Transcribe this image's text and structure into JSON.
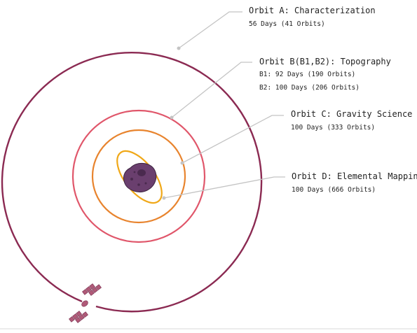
{
  "colors": {
    "orbit_a": "#8b2a52",
    "orbit_b": "#e0566a",
    "orbit_c": "#e8842e",
    "orbit_d": "#f0a818",
    "asteroid": "#6a3f6e",
    "spacecraft": "#b05a78",
    "leader": "#c4c4c4",
    "text": "#222222"
  },
  "orbits": [
    {
      "id": "a",
      "title": "Orbit A: Characterization",
      "details": [
        "56 Days (41 Orbits)"
      ]
    },
    {
      "id": "b",
      "title": "Orbit B(B1,B2): Topography",
      "details": [
        "B1: 92 Days (190 Orbits)",
        "B2: 100 Days (206 Orbits)"
      ]
    },
    {
      "id": "c",
      "title": "Orbit C: Gravity Science",
      "details": [
        "100 Days (333 Orbits)"
      ]
    },
    {
      "id": "d",
      "title": "Orbit D: Elemental Mapping",
      "details": [
        "100 Days (666 Orbits)"
      ]
    }
  ]
}
